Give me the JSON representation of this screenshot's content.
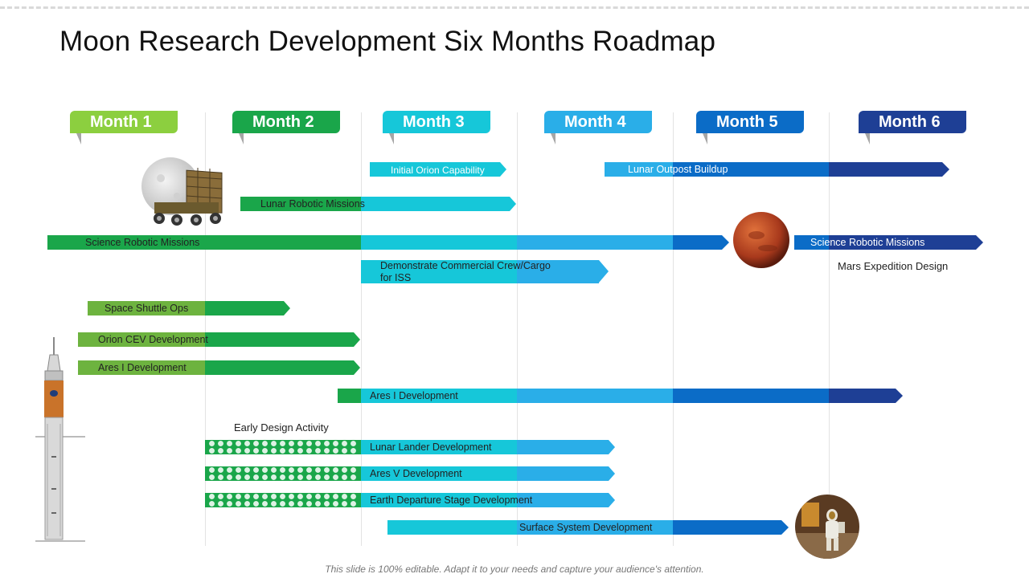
{
  "title": "Moon Research Development Six Months Roadmap",
  "footer": "This slide is 100% editable. Adapt it to your needs and capture your audience's attention.",
  "months": [
    {
      "label": "Month 1",
      "color": "#8ccf3f"
    },
    {
      "label": "Month 2",
      "color": "#1aa64a"
    },
    {
      "label": "Month 3",
      "color": "#16c7d9"
    },
    {
      "label": "Month 4",
      "color": "#2aaee8"
    },
    {
      "label": "Month 5",
      "color": "#0b6cc7"
    },
    {
      "label": "Month 6",
      "color": "#1e3f95"
    }
  ],
  "tasks": {
    "initial_orion": "Initial Orion Capability",
    "lunar_outpost": "Lunar Outpost Buildup",
    "lunar_robotic": "Lunar Robotic Missions",
    "science_robotic": "Science Robotic Missions",
    "science_robotic_2": "Science Robotic Missions",
    "demo_crew_line1": "Demonstrate Commercial Crew/Cargo",
    "demo_crew_line2": "for ISS",
    "mars_expedition": "Mars Expedition Design",
    "space_shuttle": "Space Shuttle Ops",
    "orion_cev": "Orion CEV Development",
    "ares_i_1": "Ares I Development",
    "ares_i_2": "Ares I Development",
    "early_design": "Early Design Activity",
    "lunar_lander": "Lunar Lander Development",
    "ares_v": "Ares V Development",
    "earth_departure": "Earth Departure  Stage Development",
    "surface_system": "Surface System Development"
  },
  "images": {
    "moon_rover": "moon-with-rover-illustration",
    "mars": "mars-planet-illustration",
    "astronaut": "astronaut-on-moon-photo",
    "rocket": "rocket-illustration"
  }
}
